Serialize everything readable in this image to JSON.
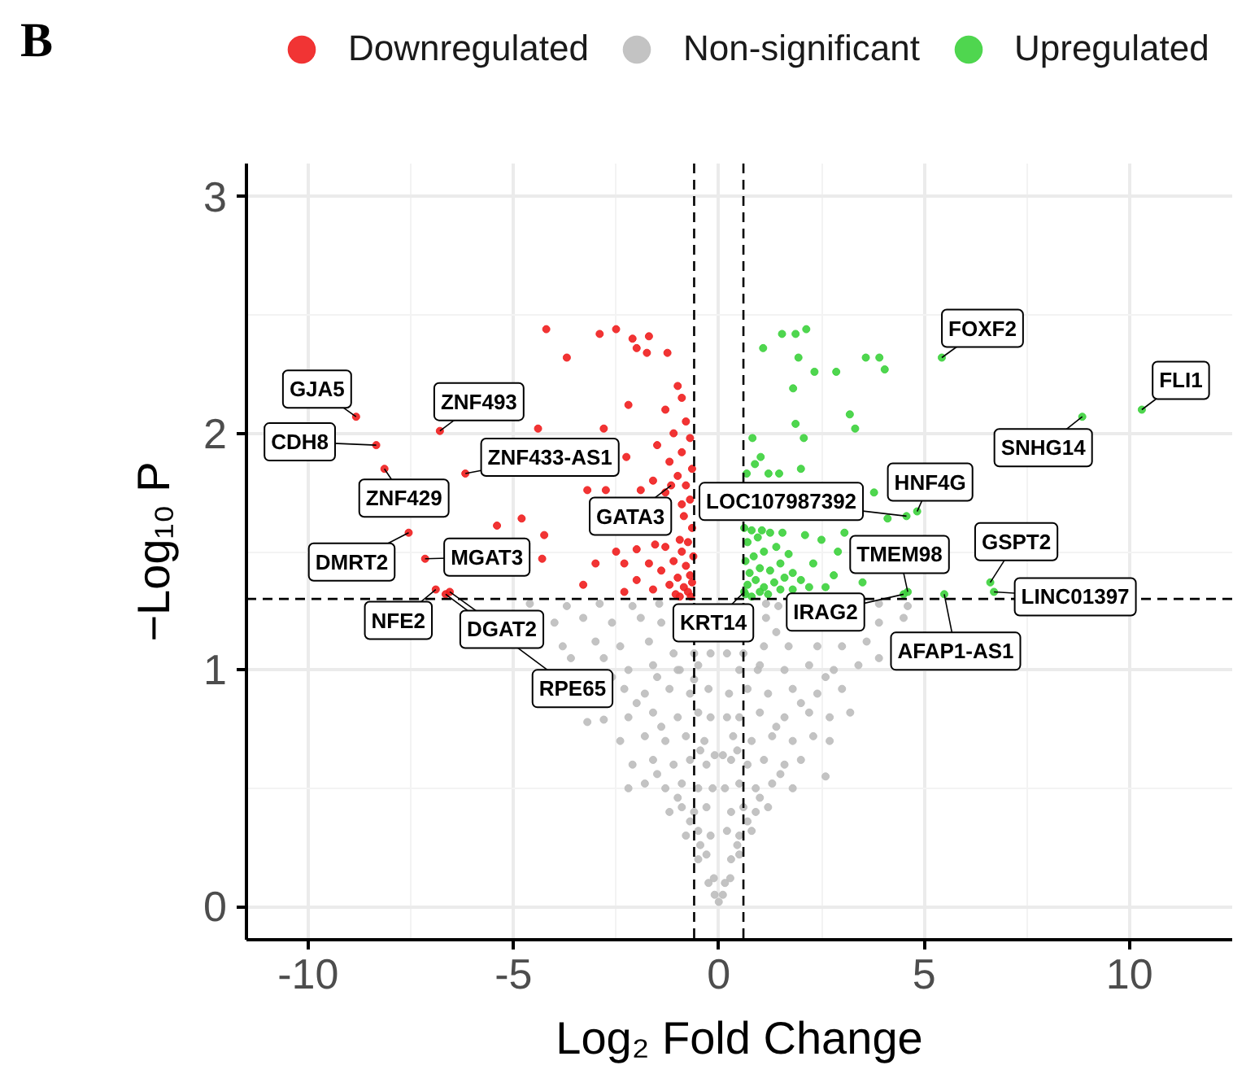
{
  "chart_data": {
    "type": "scatter",
    "xlabel": "Log₂ Fold Change",
    "ylabel": "−Log₁₀ P",
    "xlim": [
      -11.5,
      12.5
    ],
    "ylim": [
      -0.14,
      3.14
    ],
    "xticks": [
      -10,
      -5,
      0,
      5,
      10
    ],
    "yticks": [
      0,
      1,
      2,
      3
    ],
    "grid": true,
    "legend": "top",
    "marker": "circle",
    "ref_lines": [
      {
        "axis": "y",
        "value": 1.3,
        "color": "#000000",
        "line_style": "dashed"
      },
      {
        "axis": "x",
        "value": -0.6,
        "color": "#000000",
        "line_style": "dashed"
      },
      {
        "axis": "x",
        "value": 0.6,
        "color": "#000000",
        "line_style": "dashed"
      }
    ],
    "series": [
      {
        "name": "Downregulated",
        "color": "#f01e1e",
        "x": [
          -4.2,
          -3.7,
          -2.9,
          -2.5,
          -2.1,
          -1.7,
          -1.75,
          -1.25,
          -2.0,
          -5.4,
          -4.8,
          -4.25,
          -4.3,
          -3.3,
          -2.8,
          -4.4,
          -2.25,
          -2.3,
          -2.75,
          -2.2,
          -3.2,
          -2.0,
          -2.5,
          -3.0,
          -1.0,
          -0.9,
          -1.3,
          -0.8,
          -1.1,
          -0.7,
          -1.5,
          -0.9,
          -1.2,
          -0.65,
          -1.0,
          -1.6,
          -0.8,
          -1.3,
          -0.7,
          -0.9,
          -1.9,
          -0.85,
          -0.65,
          -1.55,
          -0.95,
          -0.75,
          -1.3,
          -0.9,
          -0.62,
          -1.1,
          -1.7,
          -0.8,
          -1.4,
          -0.7,
          -1.0,
          -2.0,
          -0.65,
          -1.2,
          -0.85,
          -1.6,
          -0.75,
          -1.05,
          -0.68,
          -2.3,
          -0.95,
          -8.83,
          -8.34,
          -8.14,
          -6.79,
          -6.17,
          -7.55,
          -7.15,
          -6.89,
          -6.55,
          -6.65,
          -1.16
        ],
        "values": [
          2.44,
          2.32,
          2.42,
          2.44,
          2.4,
          2.41,
          2.34,
          2.34,
          2.36,
          1.61,
          1.64,
          1.57,
          1.47,
          1.36,
          2.02,
          2.02,
          1.9,
          1.45,
          1.76,
          2.12,
          1.76,
          1.51,
          1.5,
          1.45,
          2.2,
          2.15,
          2.1,
          2.05,
          2.0,
          1.98,
          1.95,
          1.92,
          1.88,
          1.85,
          1.82,
          1.8,
          1.78,
          1.75,
          1.72,
          1.7,
          1.76,
          1.65,
          1.6,
          1.53,
          1.55,
          1.54,
          1.52,
          1.5,
          1.48,
          1.46,
          1.45,
          1.44,
          1.42,
          1.4,
          1.39,
          1.38,
          1.37,
          1.36,
          1.35,
          1.34,
          1.33,
          1.32,
          1.31,
          1.33,
          1.31,
          2.07,
          1.95,
          1.85,
          2.01,
          1.83,
          1.58,
          1.47,
          1.34,
          1.33,
          1.32,
          1.78
        ]
      },
      {
        "name": "Non-significant",
        "color": "#bdbdbd",
        "x": [
          0,
          -0.1,
          0.1,
          -0.25,
          -0.12,
          0.15,
          0.28,
          -0.5,
          -0.3,
          0.3,
          0.5,
          -0.8,
          -0.5,
          -0.2,
          0.2,
          0.5,
          0.8,
          -1.2,
          -0.9,
          -0.6,
          -0.3,
          0.3,
          0.6,
          0.9,
          1.2,
          -2.2,
          -1.8,
          -1.3,
          -0.9,
          -0.5,
          0.5,
          0.9,
          1.3,
          1.8,
          2.6,
          -2.1,
          -1.6,
          -1.1,
          -0.7,
          -0.3,
          0.3,
          0.7,
          1.1,
          1.6,
          2.0,
          -2.4,
          -1.8,
          -1.3,
          -0.8,
          -0.35,
          0.35,
          0.8,
          1.3,
          1.8,
          2.3,
          2.7,
          -3.2,
          -2.8,
          -2.2,
          -1.6,
          -1.0,
          -0.5,
          0.5,
          1.0,
          1.6,
          2.2,
          2.7,
          3.2,
          -2.3,
          -1.8,
          -1.2,
          -0.7,
          -0.25,
          0.25,
          0.7,
          1.2,
          1.8,
          2.4,
          3.0,
          -1.5,
          -3.6,
          -2.8,
          -2.2,
          -1.6,
          -1.0,
          -0.5,
          0.5,
          1.0,
          1.6,
          2.2,
          2.8,
          3.4,
          3.9,
          -3.8,
          -3.0,
          -2.4,
          -1.7,
          -1.1,
          -0.6,
          -0.2,
          0.2,
          0.6,
          1.1,
          1.7,
          2.4,
          3.0,
          3.6,
          -4.0,
          -3.3,
          -2.6,
          -1.9,
          -1.4,
          1.15,
          1.4,
          3.9,
          4.5,
          -4.6,
          -3.7,
          -2.9,
          -2.1,
          -1.45,
          1.15,
          1.45,
          3.9,
          4.6,
          -0.45,
          0.45,
          -0.7,
          0.7,
          -1.0,
          1.0,
          -1.5,
          1.5,
          -0.45,
          0.45,
          -1.4,
          1.4,
          -2.0,
          2.0,
          -0.15,
          0.15,
          -2.6,
          2.6,
          -0.2,
          0.2,
          -0.95,
          0.95,
          -0.1,
          0.1,
          -0.6
        ],
        "values": [
          0.02,
          0.05,
          0.05,
          0.1,
          0.12,
          0.1,
          0.12,
          0.2,
          0.22,
          0.2,
          0.22,
          0.3,
          0.32,
          0.3,
          0.32,
          0.3,
          0.32,
          0.4,
          0.42,
          0.4,
          0.42,
          0.4,
          0.42,
          0.4,
          0.42,
          0.5,
          0.52,
          0.5,
          0.52,
          0.5,
          0.52,
          0.5,
          0.52,
          0.5,
          0.55,
          0.6,
          0.62,
          0.6,
          0.62,
          0.6,
          0.62,
          0.6,
          0.62,
          0.6,
          0.62,
          0.7,
          0.72,
          0.7,
          0.72,
          0.7,
          0.72,
          0.7,
          0.72,
          0.7,
          0.72,
          0.7,
          0.78,
          0.79,
          0.8,
          0.82,
          0.8,
          0.82,
          0.8,
          0.82,
          0.8,
          0.82,
          0.8,
          0.82,
          0.92,
          0.9,
          0.92,
          0.9,
          0.92,
          0.9,
          0.92,
          0.9,
          0.92,
          0.9,
          0.92,
          0.97,
          1.05,
          1.05,
          1.0,
          1.02,
          1.0,
          1.02,
          1.0,
          1.02,
          1.0,
          1.02,
          1.0,
          1.02,
          1.05,
          1.1,
          1.12,
          1.1,
          1.12,
          1.07,
          1.07,
          1.07,
          1.07,
          1.07,
          1.1,
          1.1,
          1.1,
          1.1,
          1.12,
          1.2,
          1.22,
          1.2,
          1.22,
          1.2,
          1.22,
          1.16,
          1.2,
          1.22,
          1.28,
          1.27,
          1.28,
          1.27,
          1.28,
          1.28,
          1.27,
          1.28,
          1.27,
          0.26,
          0.26,
          0.36,
          0.36,
          0.46,
          0.46,
          0.56,
          0.56,
          0.66,
          0.66,
          0.76,
          0.76,
          0.86,
          0.86,
          0.5,
          0.5,
          0.97,
          0.97,
          0.8,
          0.8,
          1.0,
          1.0,
          0.64,
          0.64,
          0.96
        ]
      },
      {
        "name": "Upregulated",
        "color": "#3cd23c",
        "x": [
          1.54,
          1.87,
          2.13,
          1.08,
          1.94,
          2.33,
          2.86,
          3.58,
          3.91,
          4.04,
          1.81,
          3.19,
          1.87,
          3.32,
          2.07,
          0.82,
          1.02,
          0.68,
          1.21,
          1.47,
          2.0,
          0.88,
          3.78,
          3.06,
          4.11,
          3.5,
          0.65,
          0.8,
          1.0,
          1.2,
          1.5,
          1.8,
          2.2,
          2.6,
          0.7,
          0.9,
          1.1,
          1.35,
          1.6,
          2.0,
          0.75,
          1.0,
          1.25,
          1.5,
          1.8,
          0.65,
          0.85,
          1.1,
          1.4,
          1.7,
          0.7,
          0.95,
          1.25,
          1.55,
          0.8,
          1.05,
          0.62,
          2.3,
          2.5,
          2.1,
          2.8,
          2.9,
          5.43,
          10.3,
          8.85,
          4.83,
          4.57,
          6.61,
          4.6,
          4.5,
          5.49,
          6.7,
          0.62
        ],
        "values": [
          2.42,
          2.42,
          2.44,
          2.36,
          2.32,
          2.26,
          2.26,
          2.32,
          2.32,
          2.27,
          2.19,
          2.08,
          2.04,
          2.02,
          1.98,
          1.98,
          1.9,
          1.83,
          1.83,
          1.83,
          1.85,
          1.87,
          1.75,
          1.58,
          1.64,
          1.37,
          1.32,
          1.31,
          1.33,
          1.32,
          1.34,
          1.34,
          1.35,
          1.35,
          1.36,
          1.38,
          1.35,
          1.37,
          1.39,
          1.38,
          1.41,
          1.43,
          1.42,
          1.45,
          1.41,
          1.46,
          1.48,
          1.5,
          1.52,
          1.49,
          1.54,
          1.56,
          1.58,
          1.58,
          1.59,
          1.59,
          1.6,
          1.45,
          1.55,
          1.57,
          1.4,
          1.5,
          2.32,
          2.1,
          2.07,
          1.67,
          1.65,
          1.37,
          1.33,
          1.32,
          1.32,
          1.33,
          1.33
        ]
      }
    ],
    "annotations": [
      "B",
      {
        "text": "GJA5",
        "x": -8.83,
        "y": 2.07
      },
      {
        "text": "CDH8",
        "x": -8.34,
        "y": 1.95
      },
      {
        "text": "ZNF493",
        "x": -6.79,
        "y": 2.01
      },
      {
        "text": "ZNF433-AS1",
        "x": -6.17,
        "y": 1.83
      },
      {
        "text": "ZNF429",
        "x": -8.14,
        "y": 1.85
      },
      {
        "text": "DMRT2",
        "x": -7.55,
        "y": 1.58
      },
      {
        "text": "MGAT3",
        "x": -7.15,
        "y": 1.47
      },
      {
        "text": "GATA3",
        "x": -1.16,
        "y": 1.78
      },
      {
        "text": "NFE2",
        "x": -6.89,
        "y": 1.34
      },
      {
        "text": "DGAT2",
        "x": -6.55,
        "y": 1.33
      },
      {
        "text": "RPE65",
        "x": -6.65,
        "y": 1.32
      },
      {
        "text": "KRT14",
        "x": 0.62,
        "y": 1.33
      },
      {
        "text": "LOC107987392",
        "x": 4.57,
        "y": 1.65
      },
      {
        "text": "HNF4G",
        "x": 4.83,
        "y": 1.67
      },
      {
        "text": "FOXF2",
        "x": 5.43,
        "y": 2.32
      },
      {
        "text": "SNHG14",
        "x": 8.85,
        "y": 2.07
      },
      {
        "text": "FLI1",
        "x": 10.3,
        "y": 2.1
      },
      {
        "text": "GSPT2",
        "x": 6.61,
        "y": 1.37
      },
      {
        "text": "TMEM98",
        "x": 4.6,
        "y": 1.33
      },
      {
        "text": "IRAG2",
        "x": 4.5,
        "y": 1.32
      },
      {
        "text": "LINC01397",
        "x": 6.7,
        "y": 1.33
      },
      {
        "text": "AFAP1-AS1",
        "x": 5.49,
        "y": 1.32
      }
    ]
  }
}
